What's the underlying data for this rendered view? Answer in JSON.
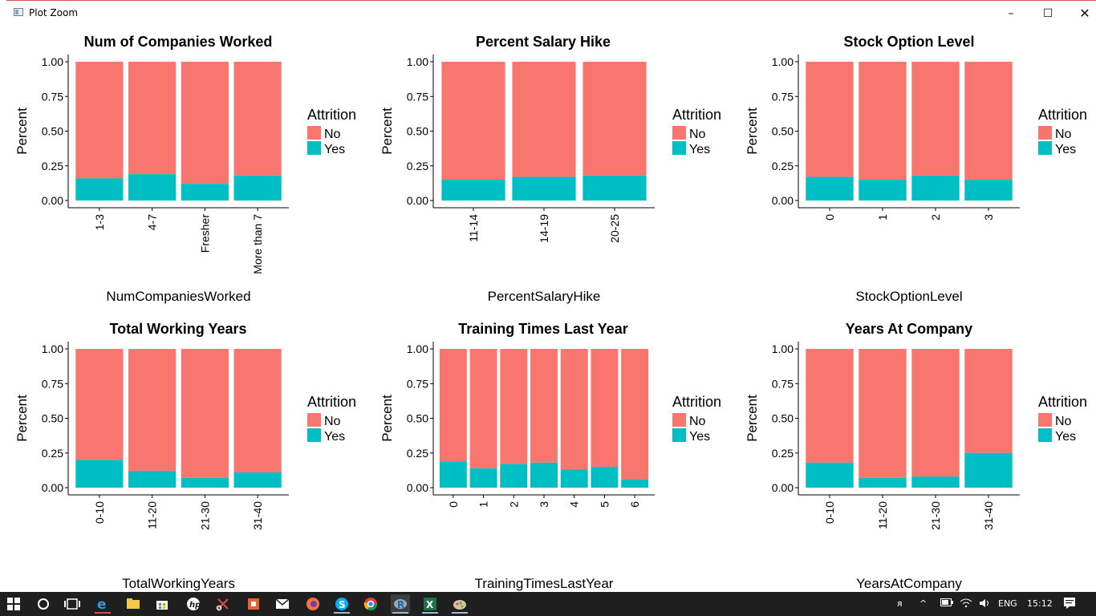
{
  "window": {
    "title": "Plot Zoom",
    "minimize_label": "–",
    "maximize_label": "☐",
    "close_label": "✕"
  },
  "colors": {
    "no": "#F8766D",
    "yes": "#00BFC4",
    "accent_border": "#d9534f"
  },
  "chart_data": [
    {
      "type": "bar",
      "stacked": true,
      "title": "Num of Companies Worked",
      "xlabel": "NumCompaniesWorked",
      "ylabel": "Percent",
      "categories": [
        "1-3",
        "4-7",
        "Fresher",
        "More than 7"
      ],
      "series": [
        {
          "name": "No",
          "values": [
            0.84,
            0.81,
            0.88,
            0.82
          ]
        },
        {
          "name": "Yes",
          "values": [
            0.16,
            0.19,
            0.12,
            0.18
          ]
        }
      ],
      "ylim": [
        0,
        1
      ],
      "yticks": [
        "0.00",
        "0.25",
        "0.50",
        "0.75",
        "1.00"
      ],
      "legend_title": "Attrition",
      "legend_position": "right"
    },
    {
      "type": "bar",
      "stacked": true,
      "title": "Percent Salary Hike",
      "xlabel": "PercentSalaryHike",
      "ylabel": "Percent",
      "categories": [
        "11-14",
        "14-19",
        "20-25"
      ],
      "series": [
        {
          "name": "No",
          "values": [
            0.85,
            0.83,
            0.82
          ]
        },
        {
          "name": "Yes",
          "values": [
            0.15,
            0.17,
            0.18
          ]
        }
      ],
      "ylim": [
        0,
        1
      ],
      "yticks": [
        "0.00",
        "0.25",
        "0.50",
        "0.75",
        "1.00"
      ],
      "legend_title": "Attrition",
      "legend_position": "right"
    },
    {
      "type": "bar",
      "stacked": true,
      "title": "Stock Option Level",
      "xlabel": "StockOptionLevel",
      "ylabel": "Percent",
      "categories": [
        "0",
        "1",
        "2",
        "3"
      ],
      "series": [
        {
          "name": "No",
          "values": [
            0.83,
            0.85,
            0.82,
            0.85
          ]
        },
        {
          "name": "Yes",
          "values": [
            0.17,
            0.15,
            0.18,
            0.15
          ]
        }
      ],
      "ylim": [
        0,
        1
      ],
      "yticks": [
        "0.00",
        "0.25",
        "0.50",
        "0.75",
        "1.00"
      ],
      "legend_title": "Attrition",
      "legend_position": "right"
    },
    {
      "type": "bar",
      "stacked": true,
      "title": "Total Working Years",
      "xlabel": "TotalWorkingYears",
      "ylabel": "Percent",
      "categories": [
        "0-10",
        "11-20",
        "21-30",
        "31-40"
      ],
      "series": [
        {
          "name": "No",
          "values": [
            0.8,
            0.88,
            0.93,
            0.89
          ]
        },
        {
          "name": "Yes",
          "values": [
            0.2,
            0.12,
            0.07,
            0.11
          ]
        }
      ],
      "ylim": [
        0,
        1
      ],
      "yticks": [
        "0.00",
        "0.25",
        "0.50",
        "0.75",
        "1.00"
      ],
      "legend_title": "Attrition",
      "legend_position": "right"
    },
    {
      "type": "bar",
      "stacked": true,
      "title": "Training Times Last Year",
      "xlabel": "TrainingTimesLastYear",
      "ylabel": "Percent",
      "categories": [
        "0",
        "1",
        "2",
        "3",
        "4",
        "5",
        "6"
      ],
      "series": [
        {
          "name": "No",
          "values": [
            0.81,
            0.86,
            0.83,
            0.82,
            0.87,
            0.85,
            0.94
          ]
        },
        {
          "name": "Yes",
          "values": [
            0.19,
            0.14,
            0.17,
            0.18,
            0.13,
            0.15,
            0.06
          ]
        }
      ],
      "ylim": [
        0,
        1
      ],
      "yticks": [
        "0.00",
        "0.25",
        "0.50",
        "0.75",
        "1.00"
      ],
      "legend_title": "Attrition",
      "legend_position": "right"
    },
    {
      "type": "bar",
      "stacked": true,
      "title": "Years At Company",
      "xlabel": "YearsAtCompany",
      "ylabel": "Percent",
      "categories": [
        "0-10",
        "11-20",
        "21-30",
        "31-40"
      ],
      "series": [
        {
          "name": "No",
          "values": [
            0.82,
            0.93,
            0.92,
            0.75
          ]
        },
        {
          "name": "Yes",
          "values": [
            0.18,
            0.07,
            0.08,
            0.25
          ]
        }
      ],
      "ylim": [
        0,
        1
      ],
      "yticks": [
        "0.00",
        "0.25",
        "0.50",
        "0.75",
        "1.00"
      ],
      "legend_title": "Attrition",
      "legend_position": "right"
    }
  ],
  "taskbar": {
    "icons": [
      "windows-start-icon",
      "cortana-circle-icon",
      "task-view-icon",
      "edge-icon",
      "file-explorer-icon",
      "store-icon",
      "hp-icon",
      "snipping-tool-icon",
      "office-icon",
      "mail-icon",
      "firefox-icon",
      "skype-icon",
      "chrome-icon",
      "r-icon",
      "excel-icon",
      "paint-icon"
    ],
    "tray": {
      "people": "ᴙ",
      "language": "ENG",
      "time": "15:12"
    }
  }
}
